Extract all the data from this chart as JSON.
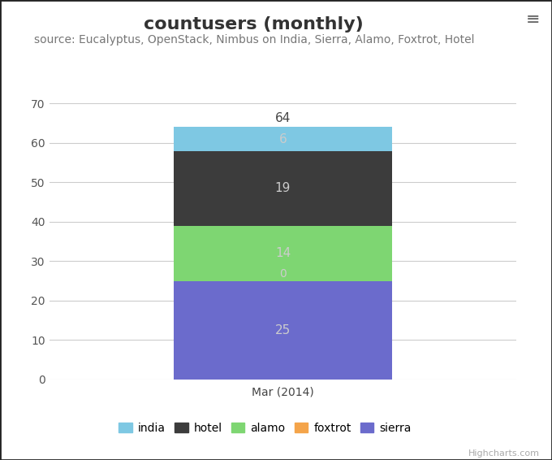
{
  "title": "countusers (monthly)",
  "subtitle": "source: Eucalyptus, OpenStack, Nimbus on India, Sierra, Alamo, Foxtrot, Hotel",
  "categories": [
    "Mar (2014)"
  ],
  "series": [
    {
      "name": "sierra",
      "color": "#6b6bcc",
      "values": [
        25
      ]
    },
    {
      "name": "foxtrot",
      "color": "#f4a44a",
      "values": [
        0
      ]
    },
    {
      "name": "alamo",
      "color": "#7ed672",
      "values": [
        14
      ]
    },
    {
      "name": "hotel",
      "color": "#3c3c3c",
      "values": [
        19
      ]
    },
    {
      "name": "india",
      "color": "#7ec8e3",
      "values": [
        6
      ]
    }
  ],
  "total_label": 64,
  "ylim": [
    0,
    70
  ],
  "yticks": [
    0,
    10,
    20,
    30,
    40,
    50,
    60,
    70
  ],
  "background_color": "#ffffff",
  "plot_bg_color": "#ffffff",
  "grid_color": "#cccccc",
  "title_fontsize": 16,
  "subtitle_fontsize": 10,
  "legend_order": [
    "india",
    "hotel",
    "alamo",
    "foxtrot",
    "sierra"
  ],
  "bar_width": 0.7,
  "highcharts_label": "Highcharts.com",
  "menu_icon_color": "#666666",
  "outer_border_color": "#333333",
  "value_label_color_dark": "#ffffff",
  "value_label_color_light": "#cccccc"
}
